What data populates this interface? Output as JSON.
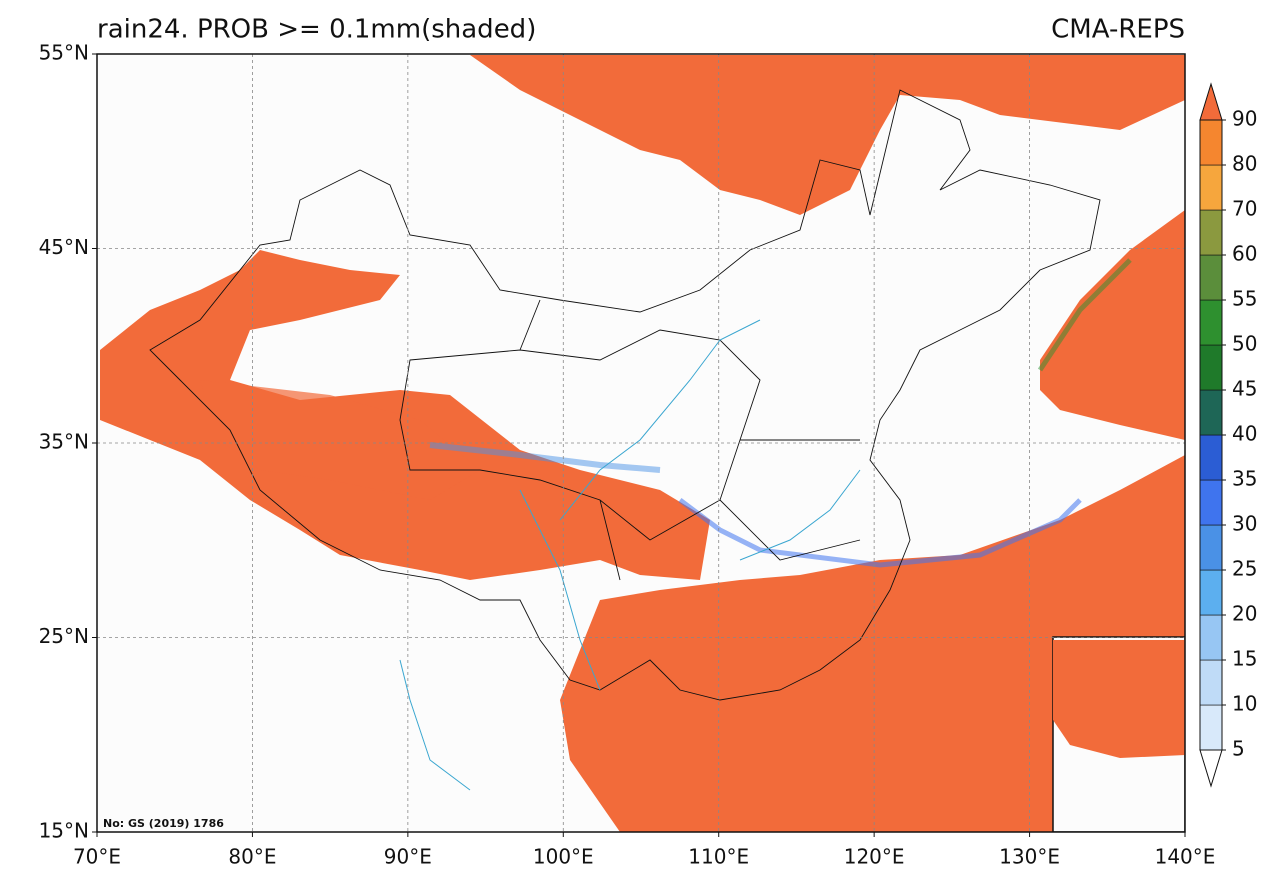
{
  "map": {
    "title": "rain24. PROB >= 0.1mm(shaded)",
    "source": "CMA-REPS",
    "note": "No: GS (2019) 1786",
    "xlim": [
      70,
      140
    ],
    "ylim": [
      15,
      55
    ],
    "xticks": [
      {
        "value": 70,
        "label": "70°E"
      },
      {
        "value": 80,
        "label": "80°E"
      },
      {
        "value": 90,
        "label": "90°E"
      },
      {
        "value": 100,
        "label": "100°E"
      },
      {
        "value": 110,
        "label": "110°E"
      },
      {
        "value": 120,
        "label": "120°E"
      },
      {
        "value": 130,
        "label": "130°E"
      },
      {
        "value": 140,
        "label": "140°E"
      }
    ],
    "yticks": [
      {
        "value": 15,
        "label": "15°N"
      },
      {
        "value": 25,
        "label": "25°N"
      },
      {
        "value": 35,
        "label": "35°N"
      },
      {
        "value": 45,
        "label": "45°N"
      },
      {
        "value": 55,
        "label": "55°N"
      }
    ],
    "grid": true
  },
  "colorbar": {
    "levels": [
      5,
      10,
      15,
      20,
      25,
      30,
      35,
      40,
      45,
      50,
      55,
      60,
      70,
      80,
      90
    ],
    "colors": [
      "#d8e9fa",
      "#bfdbf7",
      "#97c6f3",
      "#5cafef",
      "#4a91e6",
      "#3f74ee",
      "#2b5dd4",
      "#1e6656",
      "#1f7a2a",
      "#2e902f",
      "#5b8e3b",
      "#8b993f",
      "#f6a63d",
      "#f5862f"
    ],
    "over_color": "#f26b3a",
    "under_color": "#ffffff"
  }
}
